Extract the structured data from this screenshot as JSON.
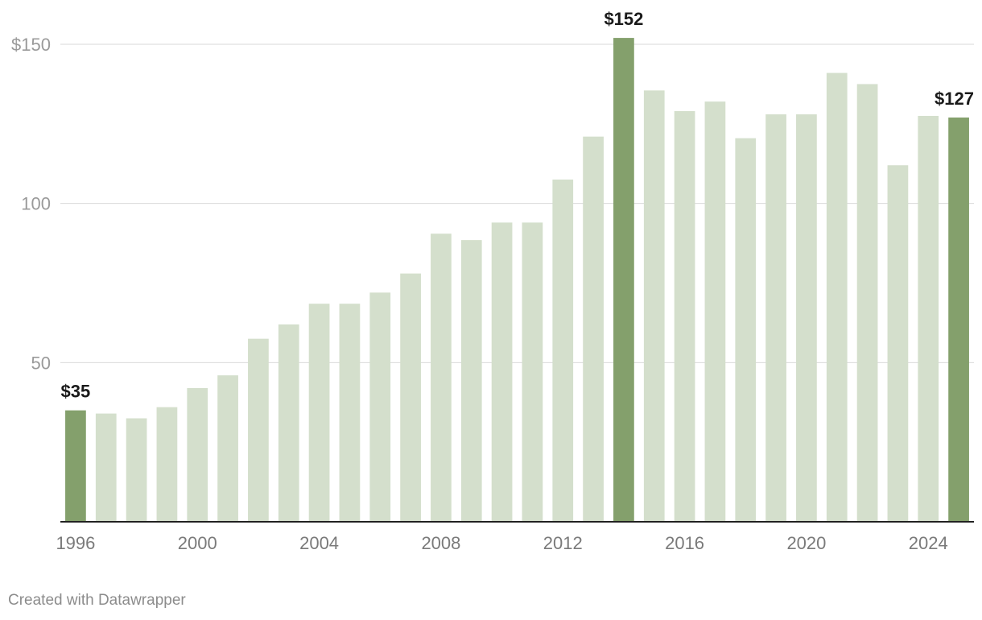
{
  "chart_data": {
    "type": "bar",
    "title": "",
    "xlabel": "",
    "ylabel": "",
    "ylim": [
      0,
      150
    ],
    "y_ticks": [
      50,
      100,
      150
    ],
    "y_tick_labels": [
      "50",
      "100",
      "$150"
    ],
    "x_tick_labels": [
      "1996",
      "2000",
      "2004",
      "2008",
      "2012",
      "2016",
      "2020",
      "2024"
    ],
    "categories": [
      "1996",
      "1997",
      "1998",
      "1999",
      "2000",
      "2001",
      "2002",
      "2003",
      "2004",
      "2005",
      "2006",
      "2007",
      "2008",
      "2009",
      "2010",
      "2011",
      "2012",
      "2013",
      "2014",
      "2015",
      "2016",
      "2017",
      "2018",
      "2019",
      "2020",
      "2021",
      "2022",
      "2023",
      "2024",
      "2025"
    ],
    "values": [
      35,
      34,
      32.5,
      36,
      42,
      46,
      57.5,
      62,
      68.5,
      68.5,
      72,
      78,
      90.5,
      88.5,
      94,
      94,
      107.5,
      121,
      152,
      135.5,
      129,
      132,
      120.5,
      128,
      128,
      141,
      137.5,
      112,
      127.5,
      127
    ],
    "highlighted": [
      "1996",
      "2014",
      "2025"
    ],
    "value_labels": [
      {
        "category": "1996",
        "text": "$35"
      },
      {
        "category": "2014",
        "text": "$152"
      },
      {
        "category": "2025",
        "text": "$127"
      }
    ],
    "colors": {
      "bar": "#d4dfcc",
      "highlight": "#84a06c",
      "grid": "#d9d9d9",
      "baseline": "#222222"
    },
    "grid": true
  },
  "credit": "Created with Datawrapper"
}
